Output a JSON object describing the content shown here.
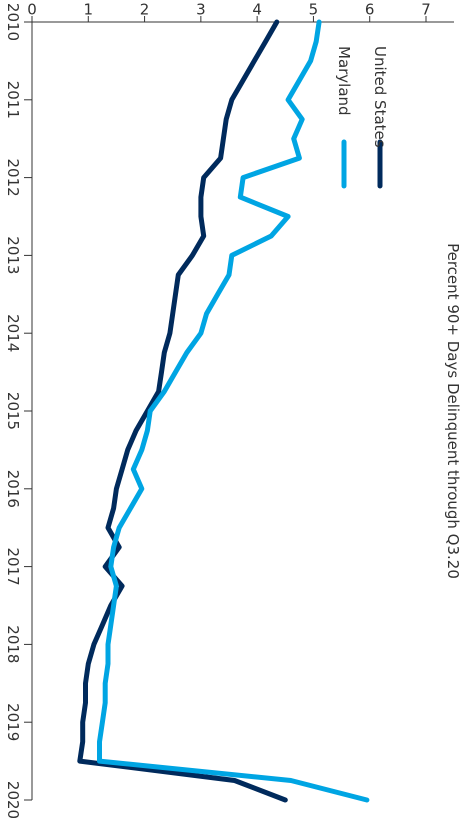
{
  "chart_data": {
    "type": "line",
    "title": "Percent 90+ Days Delinquent through Q3.20",
    "xlabel": "",
    "ylabel": "",
    "xlim": [
      2010,
      2020
    ],
    "ylim": [
      0,
      7
    ],
    "x_ticks": [
      "2010",
      "2011",
      "2012",
      "2013",
      "2014",
      "2015",
      "2016",
      "2017",
      "2018",
      "2019",
      "2020"
    ],
    "y_ticks": [
      "0",
      "1",
      "2",
      "3",
      "4",
      "5",
      "6",
      "7"
    ],
    "grid": false,
    "legend_position": "top-right",
    "series": [
      {
        "name": "United States",
        "color": "#002a5c",
        "x": [
          2010.0,
          2010.25,
          2010.5,
          2010.75,
          2011.0,
          2011.25,
          2011.5,
          2011.75,
          2012.0,
          2012.25,
          2012.5,
          2012.75,
          2013.0,
          2013.25,
          2013.5,
          2013.75,
          2014.0,
          2014.25,
          2014.5,
          2014.75,
          2015.0,
          2015.25,
          2015.5,
          2015.75,
          2016.0,
          2016.25,
          2016.5,
          2016.75,
          2017.0,
          2017.25,
          2017.5,
          2017.75,
          2018.0,
          2018.25,
          2018.5,
          2018.75,
          2019.0,
          2019.25,
          2019.5,
          2019.75,
          2020.0
        ],
        "y": [
          4.35,
          4.15,
          3.95,
          3.75,
          3.55,
          3.45,
          3.4,
          3.35,
          3.05,
          3.0,
          3.0,
          3.05,
          2.85,
          2.6,
          2.55,
          2.5,
          2.45,
          2.35,
          2.3,
          2.25,
          2.05,
          1.85,
          1.7,
          1.6,
          1.5,
          1.45,
          1.35,
          1.55,
          1.3,
          1.6,
          1.4,
          1.25,
          1.1,
          1.0,
          0.95,
          0.95,
          0.9,
          0.9,
          0.85,
          3.6,
          4.5
        ]
      },
      {
        "name": "Maryland",
        "color": "#00a5e3",
        "x": [
          2010.0,
          2010.25,
          2010.5,
          2010.75,
          2011.0,
          2011.25,
          2011.5,
          2011.75,
          2012.0,
          2012.25,
          2012.5,
          2012.75,
          2013.0,
          2013.25,
          2013.5,
          2013.75,
          2014.0,
          2014.25,
          2014.5,
          2014.75,
          2015.0,
          2015.25,
          2015.5,
          2015.75,
          2016.0,
          2016.25,
          2016.5,
          2016.75,
          2017.0,
          2017.25,
          2017.5,
          2017.75,
          2018.0,
          2018.25,
          2018.5,
          2018.75,
          2019.0,
          2019.25,
          2019.5,
          2019.75,
          2020.0
        ],
        "y": [
          5.1,
          5.05,
          4.95,
          4.75,
          4.55,
          4.8,
          4.65,
          4.75,
          3.75,
          3.7,
          4.55,
          4.25,
          3.55,
          3.5,
          3.3,
          3.1,
          3.0,
          2.75,
          2.55,
          2.35,
          2.1,
          2.05,
          1.95,
          1.8,
          1.95,
          1.75,
          1.55,
          1.45,
          1.4,
          1.5,
          1.45,
          1.4,
          1.35,
          1.35,
          1.3,
          1.3,
          1.25,
          1.2,
          1.2,
          4.6,
          5.95
        ]
      }
    ]
  }
}
